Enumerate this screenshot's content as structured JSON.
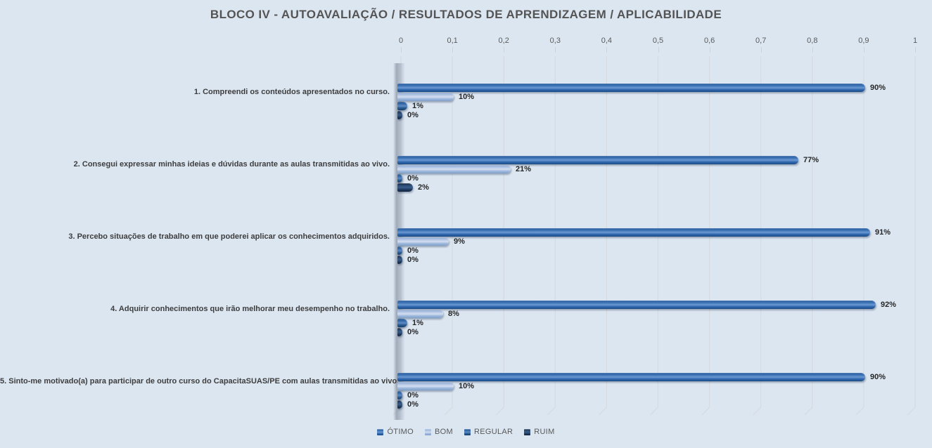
{
  "title": "BLOCO IV - AUTOAVALIAÇÃO / RESULTADOS DE APRENDIZAGEM / APLICABILIDADE",
  "chart_data": {
    "type": "bar",
    "orientation": "horizontal",
    "title": "BLOCO IV - AUTOAVALIAÇÃO / RESULTADOS DE APRENDIZAGEM / APLICABILIDADE",
    "categories": [
      "1. Compreendi os conteúdos apresentados no curso.",
      "2. Consegui expressar minhas ideias e dúvidas durante as aulas transmitidas ao vivo.",
      "3. Percebo situações de trabalho em que poderei aplicar os conhecimentos adquiridos.",
      "4. Adquirir conhecimentos que irão melhorar meu desempenho no trabalho.",
      "5. Sinto-me motivado(a) para participar de outro curso do CapacitaSUAS/PE com aulas transmitidas ao vivo."
    ],
    "series": [
      {
        "key": "otimo",
        "name": "ÓTIMO",
        "color": "#2e6cb5",
        "gradient": [
          "#24589a",
          "#4076b8",
          "#6b98d2",
          "#2d66ac",
          "#1d4c85"
        ],
        "values": [
          90,
          77,
          91,
          92,
          90
        ],
        "labels": [
          "90%",
          "77%",
          "91%",
          "92%",
          "90%"
        ]
      },
      {
        "key": "bom",
        "name": "BOM",
        "color": "#9db7dc",
        "gradient": [
          "#8aa5cf",
          "#b4c6e6",
          "#d3deef",
          "#9db7dc",
          "#81a0ca"
        ],
        "values": [
          10,
          21,
          9,
          8,
          10
        ],
        "labels": [
          "10%",
          "21%",
          "9%",
          "8%",
          "10%"
        ]
      },
      {
        "key": "regular",
        "name": "REGULAR",
        "color": "#2a5a9b",
        "gradient": [
          "#1e4f8c",
          "#3a6fae",
          "#5e8cc4",
          "#28598f",
          "#173f6b"
        ],
        "values": [
          1,
          0,
          0,
          1,
          0
        ],
        "labels": [
          "1%",
          "0%",
          "0%",
          "1%",
          "0%"
        ]
      },
      {
        "key": "ruim",
        "name": "RUIM",
        "color": "#1f3864",
        "gradient": [
          "#16263f",
          "#2b4d78",
          "#3a5d8a",
          "#1d3a61",
          "#122440"
        ],
        "values": [
          0,
          2,
          0,
          0,
          0
        ],
        "labels": [
          "0%",
          "2%",
          "0%",
          "0%",
          "0%"
        ]
      }
    ],
    "x_axis": {
      "min": 0,
      "max": 1,
      "tick_labels": [
        "0",
        "0,1",
        "0,2",
        "0,3",
        "0,4",
        "0,5",
        "0,6",
        "0,7",
        "0,8",
        "0,9",
        "1"
      ]
    },
    "legend_position": "bottom",
    "gridlines": true,
    "background_color": "#dce6f1",
    "gridline_color": "#d6dbe1"
  }
}
